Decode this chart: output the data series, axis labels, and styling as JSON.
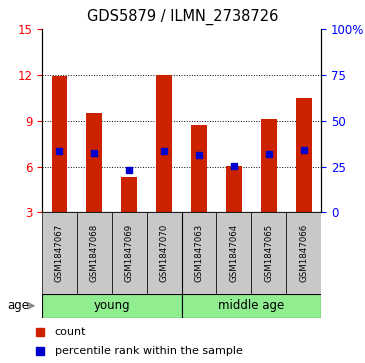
{
  "title": "GDS5879 / ILMN_2738726",
  "samples": [
    "GSM1847067",
    "GSM1847068",
    "GSM1847069",
    "GSM1847070",
    "GSM1847063",
    "GSM1847064",
    "GSM1847065",
    "GSM1847066"
  ],
  "counts": [
    11.95,
    9.5,
    5.3,
    12.0,
    8.7,
    6.05,
    9.1,
    10.5
  ],
  "percentiles": [
    7.0,
    6.9,
    5.75,
    7.0,
    6.75,
    6.05,
    6.85,
    7.1
  ],
  "baseline": 3.0,
  "ylim_left": [
    3,
    15
  ],
  "yticks_left": [
    3,
    6,
    9,
    12,
    15
  ],
  "yticks_right_labels": [
    "0",
    "25",
    "50",
    "75",
    "100%"
  ],
  "yticks_right_vals": [
    0,
    25,
    50,
    75,
    100
  ],
  "grid_lines": [
    6,
    9,
    12
  ],
  "bar_color": "#cc2200",
  "dot_color": "#0000cc",
  "bar_width": 0.45,
  "sample_box_color": "#c8c8c8",
  "group_color": "#90EE90",
  "young_label": "young",
  "middle_label": "middle age",
  "age_label": "age",
  "legend_count": "count",
  "legend_pct": "percentile rank within the sample"
}
